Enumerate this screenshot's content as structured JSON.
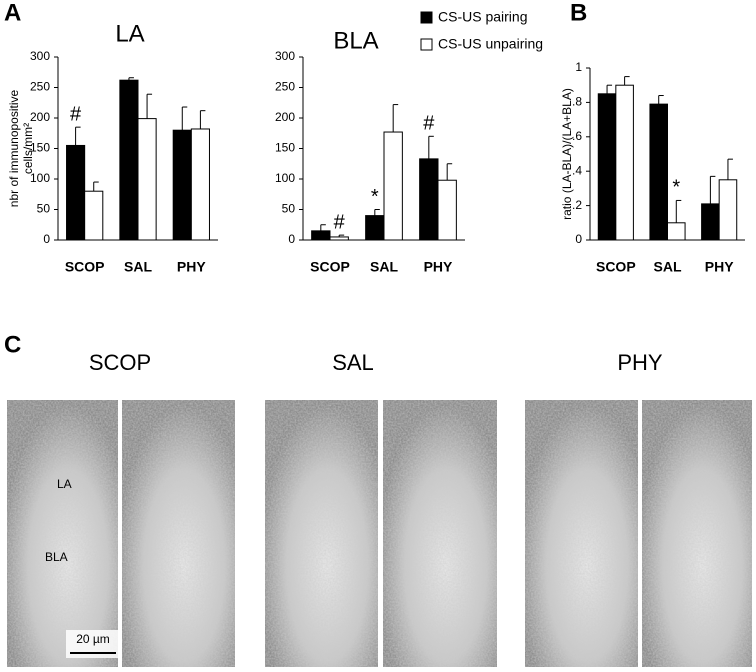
{
  "panel_labels": [
    "A",
    "B",
    "C"
  ],
  "chart_data": [
    {
      "type": "bar",
      "title": "LA",
      "ylabel": [
        "nbr of immunopositive",
        "cells/mm²"
      ],
      "categories": [
        "SCOP",
        "SAL",
        "PHY"
      ],
      "series": [
        {
          "color": "#000000",
          "values": [
            155,
            262,
            180
          ],
          "errors": [
            30,
            4,
            38
          ],
          "annotations": [
            "#",
            null,
            null
          ]
        },
        {
          "color": "#ffffff",
          "values": [
            80,
            199,
            182
          ],
          "errors": [
            15,
            40,
            30
          ],
          "annotations": [
            null,
            null,
            null
          ]
        }
      ],
      "ylim": [
        0,
        300
      ],
      "yticks": [
        0,
        50,
        100,
        150,
        200,
        250,
        300
      ]
    },
    {
      "type": "bar",
      "title": "BLA",
      "categories": [
        "SCOP",
        "SAL",
        "PHY"
      ],
      "series": [
        {
          "name": "CS-US pairing",
          "color": "#000000",
          "values": [
            15,
            40,
            133
          ],
          "errors": [
            10,
            10,
            37
          ],
          "annotations": [
            null,
            "*",
            "#"
          ]
        },
        {
          "name": "CS-US unpairing",
          "color": "#ffffff",
          "values": [
            5,
            177,
            98
          ],
          "errors": [
            3,
            45,
            27
          ],
          "annotations": [
            "#",
            null,
            null
          ]
        }
      ],
      "ylim": [
        0,
        300
      ],
      "yticks": [
        0,
        50,
        100,
        150,
        200,
        250,
        300
      ]
    },
    {
      "type": "bar",
      "ylabel": [
        "ratio (LA-BLA)/(LA+BLA)"
      ],
      "categories": [
        "SCOP",
        "SAL",
        "PHY"
      ],
      "series": [
        {
          "color": "#000000",
          "values": [
            0.85,
            0.79,
            0.21
          ],
          "errors": [
            0.05,
            0.05,
            0.16
          ],
          "annotations": [
            null,
            null,
            null
          ]
        },
        {
          "color": "#ffffff",
          "values": [
            0.9,
            0.1,
            0.35
          ],
          "errors": [
            0.05,
            0.13,
            0.12
          ],
          "annotations": [
            null,
            "*",
            null
          ]
        }
      ],
      "ylim": [
        0,
        1
      ],
      "yticks": [
        0,
        {
          "value": 0.2,
          "label": ".2"
        },
        {
          "value": 0.4,
          "label": ".4"
        },
        {
          "value": 0.6,
          "label": ".6"
        },
        {
          "value": 0.8,
          "label": ".8"
        },
        1
      ]
    }
  ],
  "micrographs": {
    "groups": [
      "SCOP",
      "SAL",
      "PHY"
    ],
    "region_labels": [
      "LA",
      "BLA"
    ],
    "scale_bar": "20 µm"
  }
}
